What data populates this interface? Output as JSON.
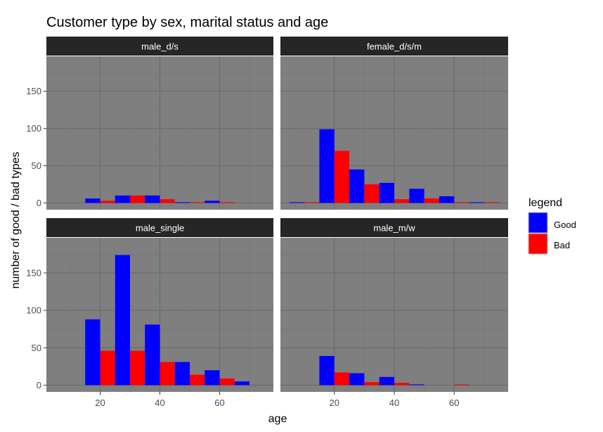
{
  "chart_data": {
    "type": "bar",
    "title": "Customer type by sex, marital status and age",
    "xlabel": "age",
    "ylabel": "number of good / bad types",
    "x_ticks": [
      20,
      40,
      60
    ],
    "y_ticks": [
      0,
      50,
      100,
      150
    ],
    "xlim": [
      2,
      78
    ],
    "ylim": [
      -9,
      197
    ],
    "age_bins": [
      10,
      20,
      30,
      40,
      50,
      60,
      70
    ],
    "bin_width": 10,
    "grid": true,
    "legend": {
      "title": "legend",
      "position": "right",
      "entries": [
        {
          "label": "Good",
          "color": "#0000ff"
        },
        {
          "label": "Bad",
          "color": "#ff0000"
        }
      ]
    },
    "colors": {
      "panel_bg": "#7f7f7f",
      "strip_bg": "#262626",
      "grid_major": "#6b6b6b",
      "grid_minor": "#767676",
      "good": "#0000ff",
      "bad": "#ff0000"
    },
    "panels": [
      {
        "label": "male_d/s",
        "good": [
          0,
          6,
          10,
          10,
          1,
          3,
          0
        ],
        "bad": [
          0,
          3,
          10,
          5,
          1,
          1,
          0
        ]
      },
      {
        "label": "female_d/s/m",
        "good": [
          1,
          99,
          45,
          27,
          19,
          9,
          1
        ],
        "bad": [
          1,
          70,
          25,
          5,
          6,
          1,
          1
        ]
      },
      {
        "label": "male_single",
        "good": [
          0,
          88,
          174,
          81,
          31,
          20,
          5
        ],
        "bad": [
          0,
          46,
          46,
          31,
          14,
          9,
          0
        ]
      },
      {
        "label": "male_m/w",
        "good": [
          0,
          39,
          16,
          11,
          1,
          0,
          0
        ],
        "bad": [
          0,
          17,
          4,
          3,
          0,
          1,
          0
        ]
      }
    ]
  }
}
